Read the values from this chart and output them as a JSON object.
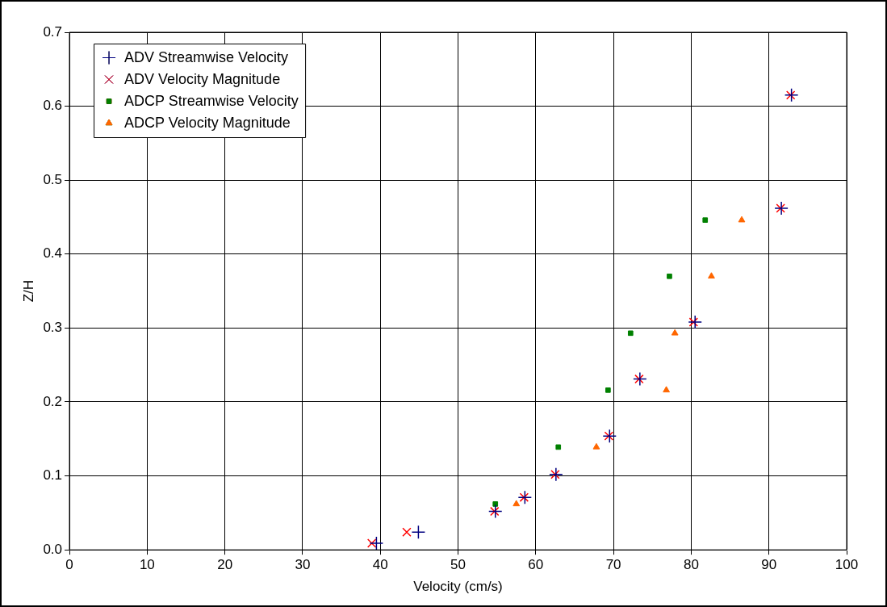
{
  "chart_data": {
    "type": "scatter",
    "xlabel": "Velocity (cm/s)",
    "ylabel": "Z/H",
    "xlim": [
      0,
      100
    ],
    "xticks": [
      0,
      10,
      20,
      30,
      40,
      50,
      60,
      70,
      80,
      90,
      100
    ],
    "ylim": [
      0,
      0.7
    ],
    "yticks": [
      {
        "value": 0,
        "label": "0.0"
      },
      0.1,
      0.2,
      0.3,
      0.4,
      0.5,
      0.6,
      0.7
    ],
    "grid": true,
    "legend": "top left",
    "series": [
      {
        "name": "ADV Streamwise Velocity",
        "color": "#000080",
        "marker": "cross",
        "x": [
          39.5,
          44.9,
          54.8,
          58.6,
          62.6,
          69.5,
          73.4,
          80.5,
          91.6,
          92.9
        ],
        "values": [
          0.009,
          0.024,
          0.052,
          0.071,
          0.102,
          0.154,
          0.231,
          0.308,
          0.462,
          0.615
        ]
      },
      {
        "name": "ADV Velocity Magnitude",
        "color": "#ff0000",
        "marker": "x",
        "x": [
          38.9,
          43.4,
          54.7,
          58.5,
          62.5,
          69.4,
          73.3,
          80.3,
          91.5,
          92.8
        ],
        "values": [
          0.009,
          0.024,
          0.052,
          0.071,
          0.102,
          0.154,
          0.231,
          0.308,
          0.462,
          0.615
        ]
      },
      {
        "name": "ADCP Streamwise Velocity",
        "color": "#008000",
        "marker": "square",
        "x": [
          54.8,
          62.9,
          69.3,
          72.2,
          77.2,
          81.8
        ],
        "values": [
          0.062,
          0.139,
          0.216,
          0.293,
          0.37,
          0.446
        ]
      },
      {
        "name": "ADCP Velocity Magnitude",
        "color": "#ff6600",
        "marker": "triangle",
        "x": [
          57.5,
          67.8,
          76.8,
          77.9,
          82.6,
          86.5
        ],
        "values": [
          0.062,
          0.139,
          0.216,
          0.293,
          0.37,
          0.446
        ]
      }
    ]
  }
}
